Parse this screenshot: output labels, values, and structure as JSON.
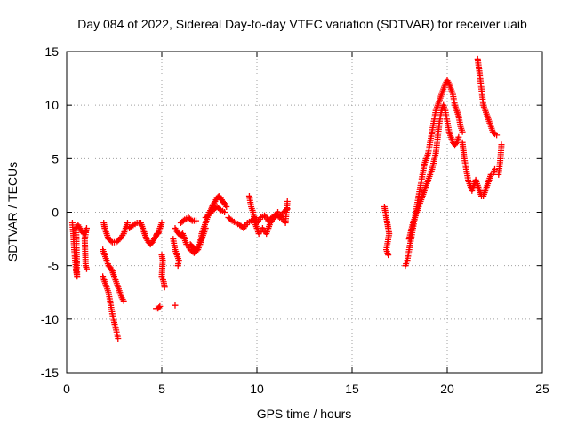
{
  "chart_data": {
    "type": "scatter",
    "title": "Day 084 of 2022, Sidereal Day-to-day VTEC variation (SDTVAR) for receiver uaib",
    "xlabel": "GPS time / hours",
    "ylabel": "SDTVAR / TECUs",
    "xlim": [
      0,
      25
    ],
    "ylim": [
      -15,
      15
    ],
    "xticks": [
      0,
      5,
      10,
      15,
      20,
      25
    ],
    "yticks": [
      -15,
      -10,
      -5,
      0,
      5,
      10,
      15
    ],
    "xtick_labels": [
      "0",
      "5",
      "10",
      "15",
      "20",
      "25"
    ],
    "ytick_labels": [
      "-15",
      "-10",
      "-5",
      "0",
      "5",
      "10",
      "15"
    ],
    "grid": true,
    "marker": "+",
    "series": [
      {
        "name": "SDTVAR",
        "color": "#ff0000",
        "segments": [
          [
            [
              0.3,
              -1.0
            ],
            [
              0.35,
              -2.0
            ],
            [
              0.4,
              -3.5
            ],
            [
              0.45,
              -4.5
            ],
            [
              0.5,
              -5.5
            ],
            [
              0.55,
              -6.0
            ],
            [
              0.5,
              -1.5
            ],
            [
              0.6,
              -1.2
            ],
            [
              0.7,
              -1.5
            ],
            [
              0.8,
              -1.8
            ],
            [
              0.9,
              -2.0
            ],
            [
              1.0,
              -1.8
            ],
            [
              1.05,
              -1.5
            ],
            [
              0.95,
              -2.5
            ],
            [
              1.0,
              -5.0
            ],
            [
              1.05,
              -5.3
            ]
          ],
          [
            [
              1.9,
              -6.0
            ],
            [
              2.0,
              -6.5
            ],
            [
              2.1,
              -7.0
            ],
            [
              2.2,
              -7.5
            ],
            [
              2.3,
              -8.5
            ],
            [
              2.4,
              -9.5
            ],
            [
              2.5,
              -10.3
            ],
            [
              2.6,
              -11.0
            ],
            [
              2.7,
              -11.8
            ]
          ],
          [
            [
              1.9,
              -3.5
            ],
            [
              2.0,
              -4.0
            ],
            [
              2.1,
              -4.5
            ],
            [
              2.2,
              -5.0
            ],
            [
              2.3,
              -5.2
            ],
            [
              2.4,
              -5.5
            ],
            [
              2.5,
              -6.0
            ],
            [
              2.6,
              -6.5
            ],
            [
              2.7,
              -7.0
            ],
            [
              2.8,
              -7.5
            ],
            [
              2.9,
              -8.0
            ],
            [
              3.0,
              -8.3
            ]
          ],
          [
            [
              1.95,
              -1.0
            ],
            [
              2.0,
              -1.5
            ],
            [
              2.1,
              -2.0
            ],
            [
              2.2,
              -2.5
            ],
            [
              2.4,
              -2.8
            ],
            [
              2.6,
              -2.8
            ],
            [
              2.8,
              -2.5
            ],
            [
              3.0,
              -2.0
            ],
            [
              3.1,
              -1.5
            ],
            [
              3.2,
              -1.0
            ]
          ],
          [
            [
              3.3,
              -1.5
            ],
            [
              3.5,
              -1.2
            ],
            [
              3.7,
              -1.0
            ],
            [
              3.9,
              -1.0
            ],
            [
              4.0,
              -1.5
            ],
            [
              4.1,
              -2.0
            ],
            [
              4.2,
              -2.5
            ],
            [
              4.3,
              -2.8
            ],
            [
              4.4,
              -3.0
            ],
            [
              4.5,
              -2.8
            ],
            [
              4.6,
              -2.5
            ],
            [
              4.7,
              -2.2
            ],
            [
              4.75,
              -2.0
            ],
            [
              4.8,
              -2.0
            ],
            [
              4.85,
              -1.8
            ],
            [
              4.9,
              -1.5
            ],
            [
              5.0,
              -1.0
            ]
          ],
          [
            [
              4.7,
              -9.0
            ],
            [
              4.8,
              -9.0
            ],
            [
              4.9,
              -8.8
            ]
          ],
          [
            [
              5.0,
              -4.0
            ],
            [
              5.05,
              -4.5
            ],
            [
              5.0,
              -6.0
            ],
            [
              5.1,
              -6.5
            ],
            [
              5.15,
              -7.0
            ]
          ],
          [
            [
              5.7,
              -8.7
            ]
          ],
          [
            [
              5.6,
              -2.5
            ],
            [
              5.7,
              -3.5
            ],
            [
              5.8,
              -4.0
            ],
            [
              5.9,
              -4.5
            ],
            [
              5.85,
              -5.0
            ]
          ],
          [
            [
              5.7,
              -1.5
            ],
            [
              5.8,
              -1.8
            ],
            [
              5.9,
              -2.0
            ],
            [
              6.0,
              -2.2
            ],
            [
              6.1,
              -2.0
            ],
            [
              6.2,
              -2.5
            ],
            [
              6.3,
              -3.0
            ],
            [
              6.5,
              -3.5
            ],
            [
              6.7,
              -3.8
            ],
            [
              6.9,
              -3.5
            ],
            [
              7.0,
              -3.0
            ],
            [
              7.1,
              -2.5
            ],
            [
              7.2,
              -2.0
            ],
            [
              7.3,
              -1.5
            ]
          ],
          [
            [
              6.0,
              -1.0
            ],
            [
              6.2,
              -0.7
            ],
            [
              6.4,
              -0.5
            ],
            [
              6.6,
              -0.8
            ],
            [
              6.8,
              -0.8
            ]
          ],
          [
            [
              6.5,
              -3.0
            ],
            [
              6.6,
              -3.2
            ],
            [
              6.8,
              -3.5
            ],
            [
              7.0,
              -3.0
            ],
            [
              7.1,
              -2.0
            ],
            [
              7.2,
              -1.5
            ],
            [
              7.3,
              -1.0
            ],
            [
              7.4,
              -0.5
            ],
            [
              7.5,
              0.0
            ],
            [
              7.6,
              0.3
            ],
            [
              7.7,
              0.7
            ],
            [
              7.8,
              1.0
            ],
            [
              7.9,
              1.3
            ],
            [
              8.0,
              1.5
            ],
            [
              8.1,
              1.3
            ],
            [
              8.2,
              1.0
            ],
            [
              8.3,
              0.8
            ],
            [
              8.4,
              0.5
            ]
          ],
          [
            [
              7.3,
              -0.5
            ],
            [
              7.5,
              -0.2
            ],
            [
              7.7,
              0.2
            ],
            [
              7.9,
              0.5
            ],
            [
              8.1,
              0.2
            ],
            [
              8.3,
              0.0
            ]
          ],
          [
            [
              8.5,
              -0.5
            ],
            [
              8.7,
              -0.8
            ],
            [
              8.9,
              -1.0
            ],
            [
              9.1,
              -1.2
            ],
            [
              9.3,
              -1.5
            ],
            [
              9.5,
              -1.0
            ],
            [
              9.7,
              -0.8
            ],
            [
              9.9,
              -0.5
            ],
            [
              10.0,
              -1.0
            ],
            [
              10.2,
              -0.5
            ],
            [
              10.4,
              -0.3
            ],
            [
              10.6,
              -0.8
            ],
            [
              10.8,
              -0.5
            ],
            [
              11.0,
              -0.2
            ],
            [
              11.2,
              -0.5
            ],
            [
              11.4,
              0.0
            ],
            [
              11.6,
              0.3
            ]
          ],
          [
            [
              9.6,
              1.5
            ],
            [
              9.7,
              0.5
            ],
            [
              9.8,
              0.0
            ],
            [
              9.9,
              -1.0
            ],
            [
              10.0,
              -1.5
            ],
            [
              10.1,
              -2.0
            ],
            [
              10.3,
              -1.5
            ],
            [
              10.5,
              -2.0
            ],
            [
              10.7,
              -1.0
            ],
            [
              10.9,
              -0.5
            ],
            [
              11.1,
              0.0
            ],
            [
              11.3,
              -0.5
            ],
            [
              11.5,
              -1.0
            ],
            [
              11.6,
              1.0
            ]
          ],
          [
            [
              16.7,
              0.5
            ],
            [
              16.75,
              0.0
            ],
            [
              16.8,
              -0.5
            ],
            [
              16.85,
              -1.0
            ],
            [
              16.9,
              -1.5
            ],
            [
              16.95,
              -2.0
            ],
            [
              16.8,
              -3.5
            ],
            [
              16.9,
              -4.0
            ]
          ],
          [
            [
              17.8,
              -5.0
            ],
            [
              17.9,
              -4.5
            ],
            [
              18.0,
              -3.5
            ],
            [
              18.1,
              -2.5
            ],
            [
              18.2,
              -1.5
            ],
            [
              18.3,
              -0.5
            ],
            [
              18.4,
              0.5
            ],
            [
              18.5,
              1.5
            ],
            [
              18.6,
              2.5
            ],
            [
              18.7,
              3.5
            ],
            [
              18.8,
              4.5
            ],
            [
              18.9,
              5.0
            ],
            [
              19.0,
              5.5
            ],
            [
              19.1,
              6.5
            ],
            [
              19.2,
              7.5
            ],
            [
              19.3,
              8.5
            ],
            [
              19.4,
              9.5
            ],
            [
              19.5,
              10.0
            ],
            [
              19.6,
              10.5
            ],
            [
              19.7,
              11.0
            ],
            [
              19.8,
              11.5
            ],
            [
              19.9,
              12.0
            ],
            [
              20.0,
              12.3
            ],
            [
              20.1,
              12.0
            ],
            [
              20.2,
              11.5
            ],
            [
              20.3,
              11.0
            ],
            [
              20.4,
              10.0
            ],
            [
              20.5,
              9.5
            ],
            [
              20.6,
              9.0
            ],
            [
              20.7,
              8.0
            ],
            [
              20.8,
              7.5
            ]
          ],
          [
            [
              18.0,
              -2.5
            ],
            [
              18.2,
              -1.0
            ],
            [
              18.4,
              0.0
            ],
            [
              18.6,
              1.0
            ],
            [
              18.8,
              2.0
            ],
            [
              19.0,
              3.0
            ],
            [
              19.2,
              4.0
            ],
            [
              19.4,
              5.5
            ],
            [
              19.5,
              7.0
            ],
            [
              19.6,
              8.5
            ],
            [
              19.7,
              9.5
            ],
            [
              19.8,
              10.0
            ],
            [
              19.9,
              9.5
            ],
            [
              20.0,
              8.5
            ],
            [
              20.1,
              7.5
            ],
            [
              20.2,
              7.0
            ],
            [
              20.3,
              6.5
            ],
            [
              20.4,
              6.3
            ],
            [
              20.5,
              6.5
            ],
            [
              20.6,
              7.0
            ]
          ],
          [
            [
              20.8,
              6.5
            ],
            [
              20.9,
              5.0
            ],
            [
              21.0,
              4.0
            ],
            [
              21.1,
              3.0
            ],
            [
              21.2,
              2.5
            ],
            [
              21.3,
              2.0
            ],
            [
              21.4,
              2.5
            ],
            [
              21.5,
              3.0
            ],
            [
              21.6,
              2.5
            ],
            [
              21.7,
              2.0
            ],
            [
              21.8,
              1.5
            ],
            [
              21.9,
              1.5
            ],
            [
              22.0,
              2.0
            ],
            [
              22.1,
              2.5
            ],
            [
              22.2,
              3.0
            ],
            [
              22.3,
              3.5
            ],
            [
              22.4,
              3.5
            ],
            [
              22.5,
              4.0
            ]
          ],
          [
            [
              21.6,
              14.3
            ],
            [
              21.7,
              13.0
            ],
            [
              21.8,
              11.5
            ],
            [
              21.9,
              10.0
            ],
            [
              22.0,
              9.5
            ],
            [
              22.1,
              9.0
            ],
            [
              22.2,
              8.5
            ],
            [
              22.3,
              8.0
            ],
            [
              22.4,
              7.5
            ],
            [
              22.5,
              7.3
            ],
            [
              22.6,
              7.2
            ]
          ],
          [
            [
              22.7,
              3.5
            ],
            [
              22.8,
              5.0
            ],
            [
              22.85,
              6.3
            ]
          ]
        ]
      }
    ]
  }
}
